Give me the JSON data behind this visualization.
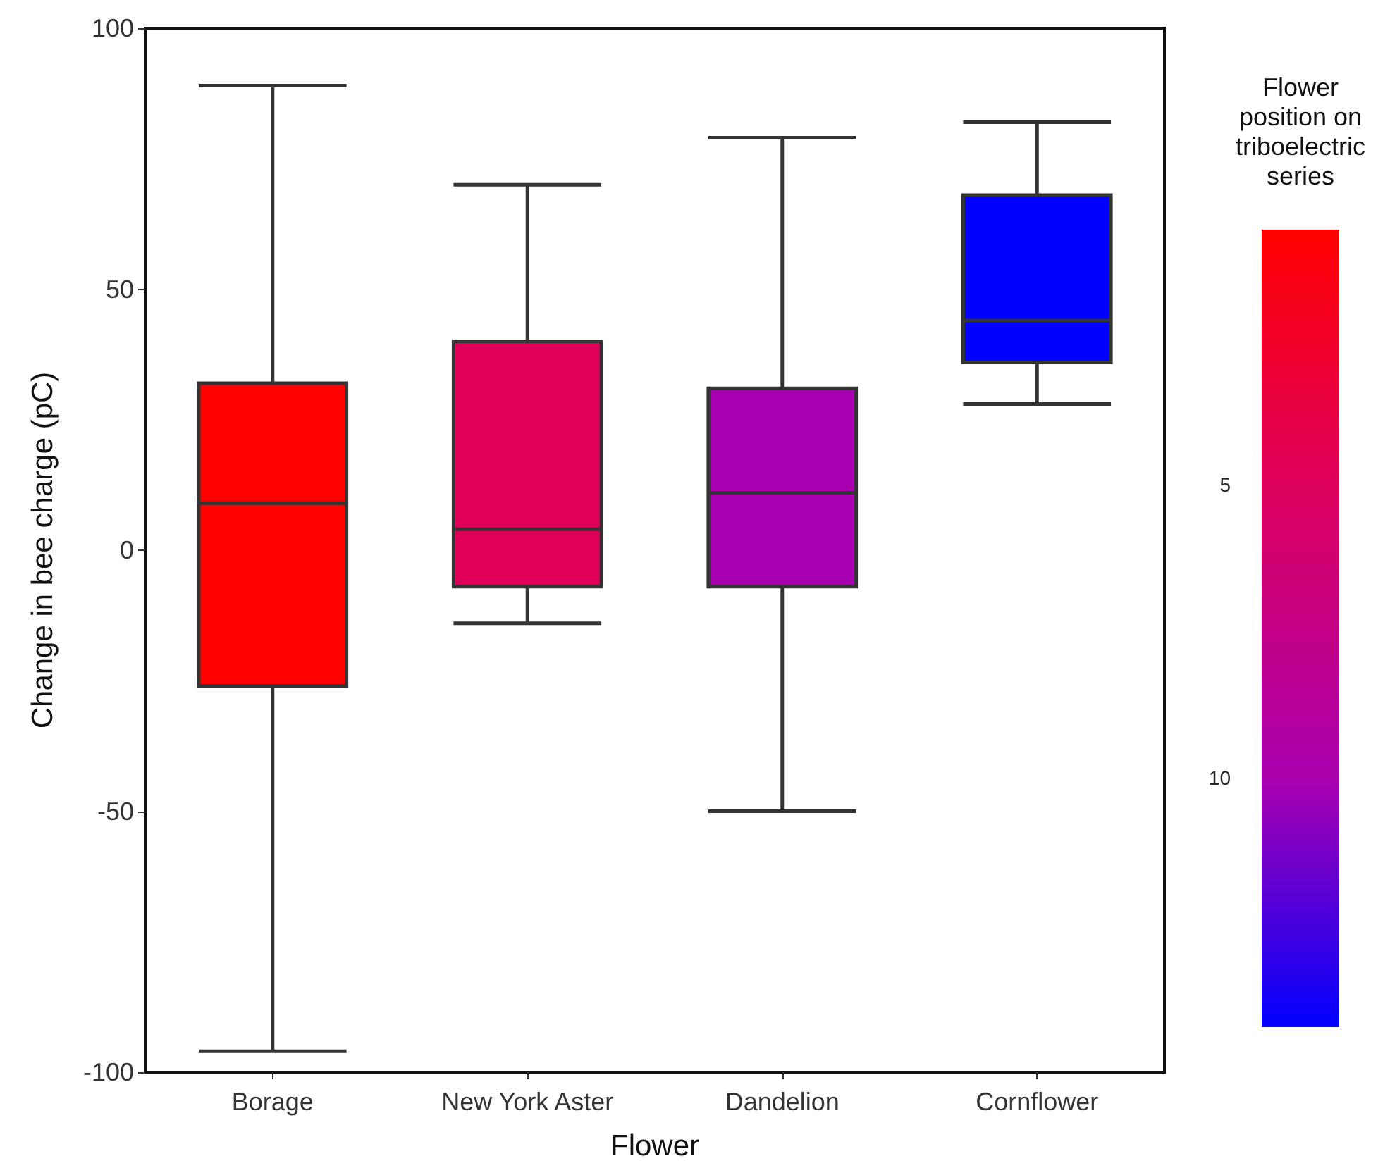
{
  "chart_data": {
    "type": "box",
    "categories": [
      "Borage",
      "New York Aster",
      "Dandelion",
      "Cornflower"
    ],
    "boxes": [
      {
        "low": -96,
        "q1": -26,
        "median": 9,
        "q3": 32,
        "high": 89
      },
      {
        "low": -14,
        "q1": -7,
        "median": 4,
        "q3": 40,
        "high": 70
      },
      {
        "low": -50,
        "q1": -7,
        "median": 11,
        "q3": 31,
        "high": 79
      },
      {
        "low": 28,
        "q1": 36,
        "median": 44,
        "q3": 68,
        "high": 82
      }
    ],
    "colors": [
      "#ff0000",
      "#e0005a",
      "#a800b0",
      "#0000ff"
    ],
    "cvalues": [
      1,
      5,
      10,
      14
    ],
    "clim": [
      1,
      14
    ],
    "cticks": [
      5,
      10
    ],
    "clabel": "Flower position on triboelectric series",
    "xlabel": "Flower",
    "ylabel": "Change in bee charge (pC)",
    "ylim": [
      -100,
      100
    ],
    "yticks": [
      -100,
      -50,
      0,
      50,
      100
    ],
    "grid": false
  }
}
